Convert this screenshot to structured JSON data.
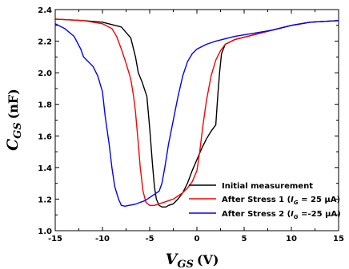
{
  "chart_data": {
    "type": "line",
    "xlabel": {
      "main": "V",
      "sub": "GS",
      "unit": "(V)"
    },
    "ylabel": {
      "main": "C",
      "sub": "GS",
      "unit": "(nF)"
    },
    "xlim": [
      -15,
      15
    ],
    "ylim": [
      1.0,
      2.4
    ],
    "xticks": [
      -15,
      -10,
      -5,
      0,
      5,
      10,
      15
    ],
    "yticks": [
      1.0,
      1.2,
      1.4,
      1.6,
      1.8,
      2.0,
      2.2,
      2.4
    ],
    "xtick_labels": [
      "-15",
      "-10",
      "-5",
      "0",
      "5",
      "10",
      "15"
    ],
    "ytick_labels": [
      "1.0",
      "1.2",
      "1.4",
      "1.6",
      "1.8",
      "2.0",
      "2.2",
      "2.4"
    ],
    "grid": false,
    "legend_position": "bottom-right",
    "series": [
      {
        "name": "Initial measurement",
        "color": "#000000",
        "x": [
          -15,
          -12,
          -10,
          -8,
          -7,
          -6.5,
          -6.2,
          -5.8,
          -5.3,
          -5.0,
          -4.7,
          -4.5,
          -4.3,
          -4.0,
          -3.7,
          -3.3,
          -3.0,
          -2.5,
          -2.0,
          -1.5,
          -1.0,
          -0.5,
          0,
          0.5,
          1.0,
          1.5,
          2.0,
          2.2,
          2.4,
          2.6,
          3.0,
          4,
          6,
          8,
          10,
          12,
          15
        ],
        "y": [
          2.34,
          2.33,
          2.32,
          2.29,
          2.22,
          2.1,
          2.0,
          1.94,
          1.85,
          1.65,
          1.42,
          1.28,
          1.2,
          1.16,
          1.15,
          1.15,
          1.16,
          1.17,
          1.2,
          1.24,
          1.3,
          1.38,
          1.45,
          1.52,
          1.58,
          1.63,
          1.67,
          1.85,
          2.0,
          2.12,
          2.18,
          2.21,
          2.24,
          2.27,
          2.3,
          2.32,
          2.33
        ]
      },
      {
        "name": "After Stress 1 (I_G = 25 µA)",
        "color": "#ff0000",
        "x": [
          -15,
          -12,
          -10,
          -9,
          -8.5,
          -8,
          -7.5,
          -7.0,
          -6.7,
          -6.5,
          -6.2,
          -6.0,
          -5.7,
          -5.4,
          -5.0,
          -4.5,
          -4.0,
          -3.5,
          -3.0,
          -2.5,
          -2.0,
          -1.5,
          -1.0,
          -0.5,
          0,
          0.3,
          0.6,
          1.0,
          1.5,
          2.0,
          2.5,
          3,
          4,
          6,
          8,
          10,
          12,
          15
        ],
        "y": [
          2.34,
          2.33,
          2.31,
          2.28,
          2.23,
          2.15,
          2.06,
          1.96,
          1.85,
          1.75,
          1.55,
          1.4,
          1.25,
          1.18,
          1.16,
          1.16,
          1.17,
          1.18,
          1.19,
          1.2,
          1.22,
          1.24,
          1.27,
          1.31,
          1.38,
          1.5,
          1.65,
          1.82,
          1.98,
          2.08,
          2.14,
          2.18,
          2.21,
          2.24,
          2.27,
          2.3,
          2.32,
          2.33
        ]
      },
      {
        "name": "After Stress 2 (I_G =-25 µA)",
        "color": "#0000ff",
        "x": [
          -15,
          -14,
          -13,
          -12.3,
          -12,
          -11.5,
          -11,
          -10.5,
          -10,
          -9.7,
          -9.3,
          -9.0,
          -8.7,
          -8.3,
          -8.0,
          -7.6,
          -7.2,
          -6.8,
          -6.4,
          -6.0,
          -5.5,
          -5.0,
          -4.5,
          -4.0,
          -3.7,
          -3.4,
          -3.0,
          -2.5,
          -2.0,
          -1.5,
          -1.0,
          -0.5,
          0,
          1,
          2,
          4,
          6,
          8,
          10,
          12,
          15
        ],
        "y": [
          2.31,
          2.28,
          2.23,
          2.15,
          2.1,
          2.07,
          2.04,
          1.98,
          1.88,
          1.72,
          1.55,
          1.4,
          1.28,
          1.2,
          1.16,
          1.155,
          1.16,
          1.165,
          1.17,
          1.18,
          1.19,
          1.21,
          1.23,
          1.25,
          1.3,
          1.4,
          1.55,
          1.7,
          1.85,
          1.98,
          2.07,
          2.12,
          2.15,
          2.18,
          2.2,
          2.23,
          2.25,
          2.27,
          2.3,
          2.32,
          2.33
        ]
      }
    ],
    "legend": [
      {
        "color": "#000000",
        "text": "Initial measurement",
        "plain": "Initial measurement",
        "var": "",
        "sub": "",
        "value": ""
      },
      {
        "color": "#ff0000",
        "text": "After Stress 1 (I_G = 25 µA)",
        "plain": "After Stress 1 (",
        "var": "I",
        "sub": "G",
        "value": " = 25 µA)"
      },
      {
        "color": "#0000ff",
        "text": "After Stress 2 (I_G =-25 µA)",
        "plain": "After Stress 2 (",
        "var": "I",
        "sub": "G",
        "value": " =-25 µA)"
      }
    ]
  }
}
